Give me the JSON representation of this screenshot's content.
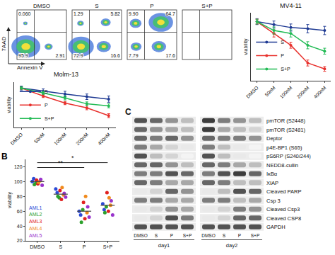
{
  "flow_cytometry": {
    "x_label": "Annexin V",
    "y_label": "7AAD",
    "plots": [
      {
        "title": "DMSO",
        "UL": "0.060",
        "UR": null,
        "LL": "95.9",
        "LR": "2.91"
      },
      {
        "title": "S",
        "UL": "1.29",
        "UR": "5.82",
        "LL": "72.9",
        "LR": "16.6"
      },
      {
        "title": "P",
        "UL": "9.90",
        "UR": "64.7",
        "LL": "7.79",
        "LR": "17.6"
      },
      {
        "title": "S+P",
        "UL": null,
        "UR": null,
        "LL": null,
        "LR": null
      }
    ]
  },
  "chart_data": [
    {
      "type": "line",
      "title": "MV4-11",
      "categories": [
        "DMSO",
        "50nM",
        "100nM",
        "200nM",
        "400nM"
      ],
      "y_label": "viability",
      "ylim": [
        0,
        1.15
      ],
      "tick_labels": "x",
      "legend": "lower left",
      "series": [
        {
          "name": "S",
          "color": "#1f3a93",
          "values": [
            1.0,
            0.95,
            0.9,
            0.88,
            0.85
          ],
          "errors": [
            0.05,
            0.06,
            0.06,
            0.07,
            0.07
          ]
        },
        {
          "name": "P",
          "color": "#e8312d",
          "values": [
            1.0,
            0.8,
            0.6,
            0.3,
            0.2
          ],
          "errors": [
            0.04,
            0.06,
            0.05,
            0.05,
            0.04
          ]
        },
        {
          "name": "S+P",
          "color": "#22bb55",
          "values": [
            1.0,
            0.85,
            0.8,
            0.6,
            0.5
          ],
          "errors": [
            0.04,
            0.06,
            0.06,
            0.06,
            0.05
          ]
        }
      ]
    },
    {
      "type": "line",
      "title": "Molm-13",
      "categories": [
        "DMSO",
        "50nM",
        "100nM",
        "200nM",
        "400nM"
      ],
      "y_label": "viability",
      "ylim": [
        0,
        1.15
      ],
      "tick_labels": "x",
      "legend": "lower left",
      "series": [
        {
          "name": "S",
          "color": "#1f3a93",
          "values": [
            1.0,
            0.92,
            0.85,
            0.78,
            0.72
          ],
          "errors": [
            0.05,
            0.06,
            0.07,
            0.07,
            0.08
          ]
        },
        {
          "name": "P",
          "color": "#e8312d",
          "values": [
            1.0,
            0.8,
            0.62,
            0.5,
            0.3
          ],
          "errors": [
            0.03,
            0.04,
            0.04,
            0.05,
            0.05
          ]
        },
        {
          "name": "S+P",
          "color": "#22bb55",
          "values": [
            1.0,
            0.88,
            0.75,
            0.6,
            0.55
          ],
          "errors": [
            0.03,
            0.04,
            0.05,
            0.05,
            0.05
          ]
        }
      ]
    },
    {
      "type": "scatter",
      "categories": [
        "DMSO",
        "S",
        "P",
        "S+P"
      ],
      "y_label": "viability",
      "ylim": [
        20,
        130
      ],
      "yticks": [
        20,
        40,
        60,
        80,
        100,
        120
      ],
      "legend": "lower left",
      "series": [
        {
          "name": "AML1",
          "color": "#2b4ad6",
          "values": [
            [
              100,
              104
            ],
            [
              90,
              85
            ],
            [
              60,
              55
            ],
            [
              70,
              62
            ]
          ]
        },
        {
          "name": "AML2",
          "color": "#2ca02c",
          "values": [
            [
              96,
              98
            ],
            [
              80,
              78
            ],
            [
              45,
              62
            ],
            [
              58,
              66
            ]
          ]
        },
        {
          "name": "AML3",
          "color": "#e02020",
          "values": [
            [
              102,
              97
            ],
            [
              88,
              76
            ],
            [
              72,
              50
            ],
            [
              85,
              60
            ]
          ]
        },
        {
          "name": "AML4",
          "color": "#f08a1c",
          "values": [
            [
              99,
              101
            ],
            [
              92,
              82
            ],
            [
              80,
              58
            ],
            [
              78,
              68
            ]
          ]
        },
        {
          "name": "AML5",
          "color": "#9933cc",
          "values": [
            [
              103,
              95
            ],
            [
              84,
              79
            ],
            [
              66,
              52
            ],
            [
              74,
              55
            ]
          ]
        }
      ],
      "means": [
        100,
        83,
        60,
        68
      ],
      "annotations": [
        {
          "from": "DMSO",
          "to": "P",
          "text": "**"
        },
        {
          "from": "DMSO",
          "to": "S+P",
          "text": "*"
        }
      ]
    }
  ],
  "panel_labels": {
    "dot_plot": "B",
    "western_blot": "C"
  },
  "western_blot": {
    "lanes": [
      "DMSO",
      "S",
      "P",
      "S+P",
      "DMSO",
      "S",
      "P",
      "S+P"
    ],
    "days": [
      {
        "label": "day1",
        "lanes": [
          0,
          3
        ]
      },
      {
        "label": "day2",
        "lanes": [
          4,
          7
        ]
      }
    ],
    "rows": [
      {
        "label": "pmTOR (S2448)",
        "bands": [
          0.8,
          0.7,
          0.5,
          0.3,
          0.9,
          0.6,
          0.5,
          0.3
        ]
      },
      {
        "label": "pmTOR (S2481)",
        "bands": [
          0.7,
          0.5,
          0.4,
          0.3,
          0.9,
          0.4,
          0.3,
          0.2
        ]
      },
      {
        "label": "Deptor",
        "bands": [
          0.7,
          0.6,
          0.7,
          0.5,
          0.7,
          0.6,
          0.6,
          0.5
        ]
      },
      {
        "label": "p4E-BP1 (S65)",
        "bands": [
          0.6,
          0.4,
          0.2,
          0.1,
          0.6,
          0.3,
          0.1,
          0.05
        ]
      },
      {
        "label": "pS6RP (S240/244)",
        "bands": [
          0.8,
          0.3,
          0.2,
          0.05,
          0.8,
          0.3,
          0.1,
          0.05
        ]
      },
      {
        "label": "NEDD8-cullin",
        "bands": [
          0.7,
          0.7,
          0.5,
          0.3,
          0.7,
          0.6,
          0.4,
          0.3
        ]
      },
      {
        "label": "IκBα",
        "bands": [
          0.6,
          0.6,
          0.8,
          0.7,
          0.6,
          0.8,
          0.9,
          0.7
        ]
      },
      {
        "label": "XIAP",
        "bands": [
          0.7,
          0.6,
          0.4,
          0.4,
          0.7,
          0.6,
          0.3,
          0.3
        ]
      },
      {
        "label": "Cleaved PARP",
        "bands": [
          0.1,
          0.2,
          0.7,
          0.5,
          0.1,
          0.3,
          0.8,
          0.7
        ]
      },
      {
        "label": "Csp 3",
        "bands": [
          0.6,
          0.6,
          0.4,
          0.4,
          0.6,
          0.6,
          0.3,
          0.4
        ]
      },
      {
        "label": "Cleaved Csp3",
        "bands": [
          0.1,
          0.2,
          0.5,
          0.4,
          0.1,
          0.2,
          0.6,
          0.5
        ]
      },
      {
        "label": "Cleaved CSP8",
        "bands": [
          0.1,
          0.2,
          0.8,
          0.6,
          0.1,
          0.2,
          0.7,
          0.7
        ]
      },
      {
        "label": "GAPDH",
        "bands": [
          0.8,
          0.8,
          0.8,
          0.8,
          0.8,
          0.8,
          0.8,
          0.8
        ]
      }
    ]
  }
}
